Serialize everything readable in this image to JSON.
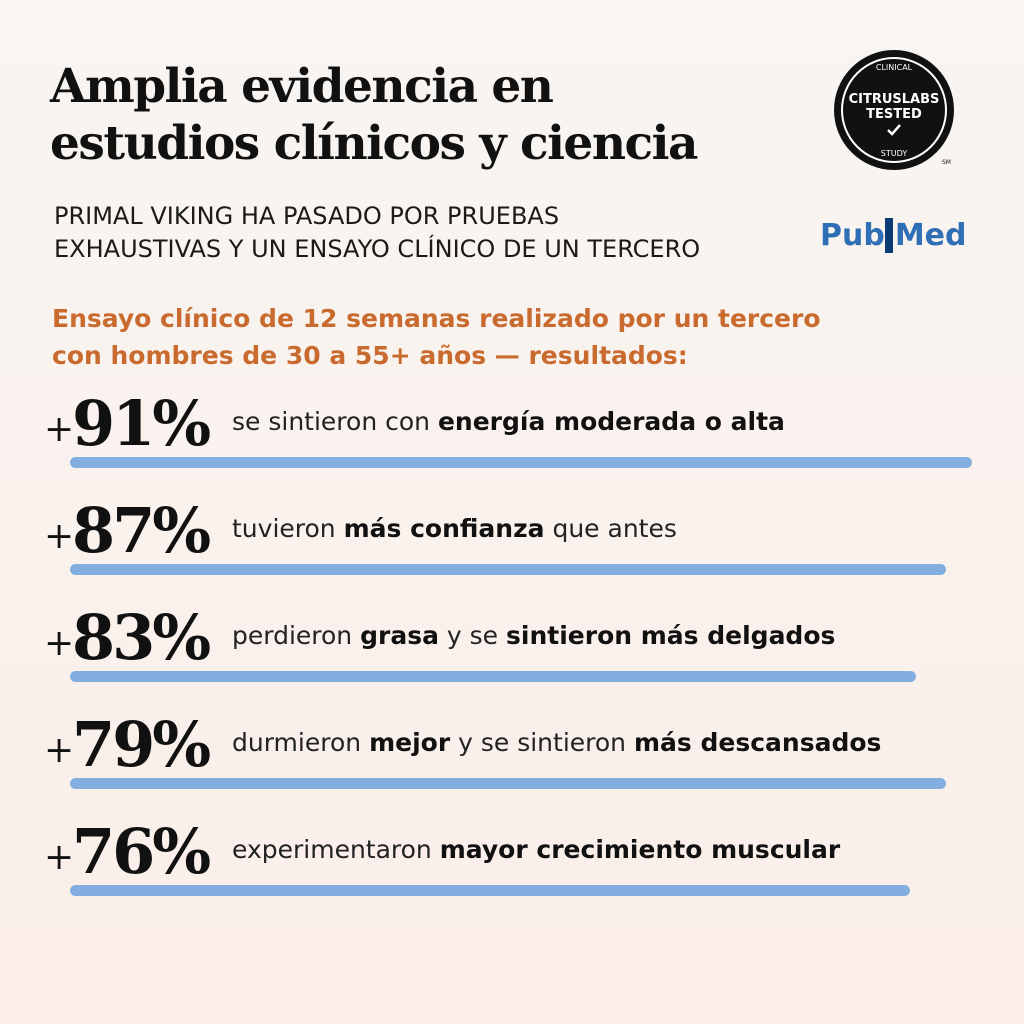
{
  "header": {
    "title_lines": [
      "Amplia evidencia en",
      "estudios clínicos y ciencia"
    ],
    "subtitle_lines": [
      "PRIMAL VIKING HA PASADO POR PRUEBAS",
      "EXHAUSTIVAS Y UN ENSAYO CLÍNICO DE UN TERCERO"
    ]
  },
  "badge": {
    "top": "CLINICAL",
    "line1": "CITRUSLABS",
    "line2": "TESTED",
    "bottom": "STUDY",
    "mark": "SM"
  },
  "pubmed": {
    "part1": "Pub",
    "part2": "Med"
  },
  "intro_lines": [
    "Ensayo clínico de 12 semanas realizado por un tercero",
    "con hombres de 30 a 55+ años — resultados:"
  ],
  "results": [
    {
      "sign": "+",
      "stat": "91%",
      "segments": [
        {
          "text": "se sintieron con ",
          "bold": false
        },
        {
          "text": "energía moderada o alta",
          "bold": true
        }
      ]
    },
    {
      "sign": "+",
      "stat": "87%",
      "segments": [
        {
          "text": "tuvieron ",
          "bold": false
        },
        {
          "text": "más confianza",
          "bold": true
        },
        {
          "text": " que antes",
          "bold": false
        }
      ]
    },
    {
      "sign": "+",
      "stat": "83%",
      "segments": [
        {
          "text": "perdieron ",
          "bold": false
        },
        {
          "text": "grasa",
          "bold": true
        },
        {
          "text": " y se ",
          "bold": false
        },
        {
          "text": "sintieron más delgados",
          "bold": true
        }
      ]
    },
    {
      "sign": "+",
      "stat": "79%",
      "segments": [
        {
          "text": "durmieron ",
          "bold": false
        },
        {
          "text": "mejor",
          "bold": true
        },
        {
          "text": " y se sintieron ",
          "bold": false
        },
        {
          "text": "más descansados",
          "bold": true
        }
      ]
    },
    {
      "sign": "+",
      "stat": "76%",
      "segments": [
        {
          "text": "experimentaron ",
          "bold": false
        },
        {
          "text": "mayor crecimiento muscular",
          "bold": true
        }
      ]
    }
  ]
}
